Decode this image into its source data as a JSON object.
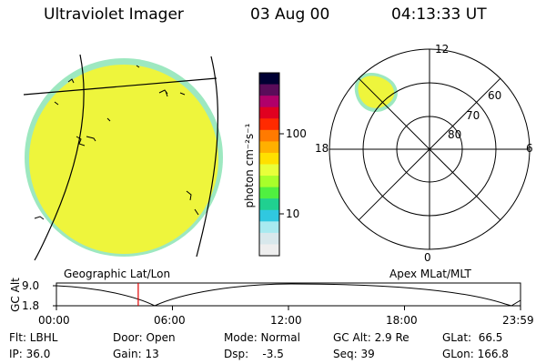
{
  "header": {
    "instrument": "Ultraviolet Imager",
    "date": "03 Aug 00",
    "time": "04:13:33 UT"
  },
  "colorbar": {
    "unit_label": "photon cm⁻²s⁻¹",
    "ticks": [
      "100",
      "10"
    ],
    "colors": [
      "#000033",
      "#5a0c5a",
      "#b0006a",
      "#e00020",
      "#ff2a00",
      "#ff7a00",
      "#ffb000",
      "#ffe000",
      "#e8ff3a",
      "#a8ff2a",
      "#50f040",
      "#20d090",
      "#30c8e0",
      "#a8eaf0",
      "#d8e8ec",
      "#eeeeee"
    ]
  },
  "panels": {
    "left_caption": "Geographic Lat/Lon",
    "right_caption": "Apex MLat/MLT"
  },
  "polar": {
    "mlt_labels": [
      "12",
      "6",
      "0",
      "18"
    ],
    "lat_labels": [
      "60",
      "70",
      "80"
    ]
  },
  "timeline": {
    "axis_label": "GC Alt",
    "y_ticks": [
      "9.0",
      "1.8"
    ],
    "x_ticks": [
      "00:00",
      "06:00",
      "12:00",
      "18:00",
      "23:59"
    ],
    "current_time_hours": 4.23
  },
  "footer": {
    "row1": [
      "Flt: LBHL",
      "Door: Open",
      "Mode: Normal",
      "GC Alt: 2.9 Re",
      "GLat:  66.5"
    ],
    "row2": [
      "IP: 36.0",
      "Gain: 13",
      "Dsp:    -3.5",
      "Seq: 39",
      "GLon: 166.8"
    ]
  },
  "theme": {
    "fill": "#eef53c",
    "rim": "#9de8c0",
    "marker": "#e00000"
  }
}
